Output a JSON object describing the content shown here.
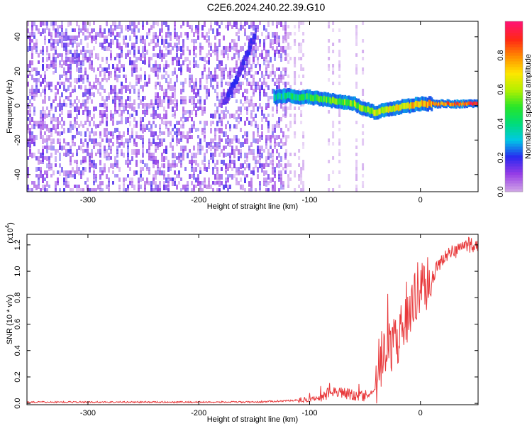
{
  "title": "C2E6.2024.240.22.39.G10",
  "chart_data": [
    {
      "type": "heatmap",
      "xlabel": "Height of straight line (km)",
      "ylabel": "Frequency (Hz)",
      "xlim": [
        -355,
        52
      ],
      "ylim": [
        -50,
        49
      ],
      "xticks": [
        -300,
        -200,
        -100,
        0
      ],
      "yticks": [
        -40,
        -20,
        0,
        20,
        40
      ],
      "ridge": {
        "x": [
          -130,
          -120,
          -110,
          -100,
          -90,
          -80,
          -70,
          -60,
          -50,
          -40,
          -30,
          -20,
          -10,
          0,
          10,
          20,
          30,
          40,
          50
        ],
        "y": [
          5,
          6,
          5,
          5,
          4,
          3,
          2,
          1,
          -2,
          -4,
          -2,
          -1,
          0,
          1,
          1,
          1,
          1,
          1,
          1
        ]
      },
      "streak": {
        "x": [
          -177,
          -150
        ],
        "y": [
          2,
          40
        ]
      },
      "colorbar": {
        "label": "Normalized spectral amplitude",
        "ticks": [
          "0.0",
          "0.2",
          "0.4",
          "0.6",
          "0.8"
        ],
        "range": [
          0,
          1
        ]
      }
    },
    {
      "type": "line",
      "xlabel": "Height of straight line (km)",
      "ylabel": "SNR (10 * v/v)",
      "multiplier": "(x10",
      "multiplier_exp": "4",
      "xlim": [
        -355,
        52
      ],
      "ylim": [
        -0.01,
        1.28
      ],
      "xticks": [
        -300,
        -200,
        -100,
        0
      ],
      "yticks": [
        "0.0",
        "0.2",
        "0.4",
        "0.6",
        "0.8",
        "1.0",
        "1.2"
      ],
      "line_color": "#e8393b",
      "series": [
        {
          "x": [
            -355,
            -300,
            -250,
            -200,
            -150,
            -120,
            -100,
            -90,
            -80,
            -70,
            -60,
            -50,
            -40,
            -35,
            -30,
            -25,
            -20,
            -15,
            -10,
            -5,
            0,
            10,
            20,
            30,
            40,
            52
          ],
          "values": [
            0.01,
            0.01,
            0.01,
            0.01,
            0.01,
            0.02,
            0.03,
            0.04,
            0.1,
            0.08,
            0.06,
            0.05,
            0.1,
            0.3,
            0.4,
            0.45,
            0.5,
            0.6,
            0.7,
            0.8,
            0.85,
            0.95,
            1.1,
            1.15,
            1.2,
            1.2
          ]
        }
      ]
    }
  ]
}
